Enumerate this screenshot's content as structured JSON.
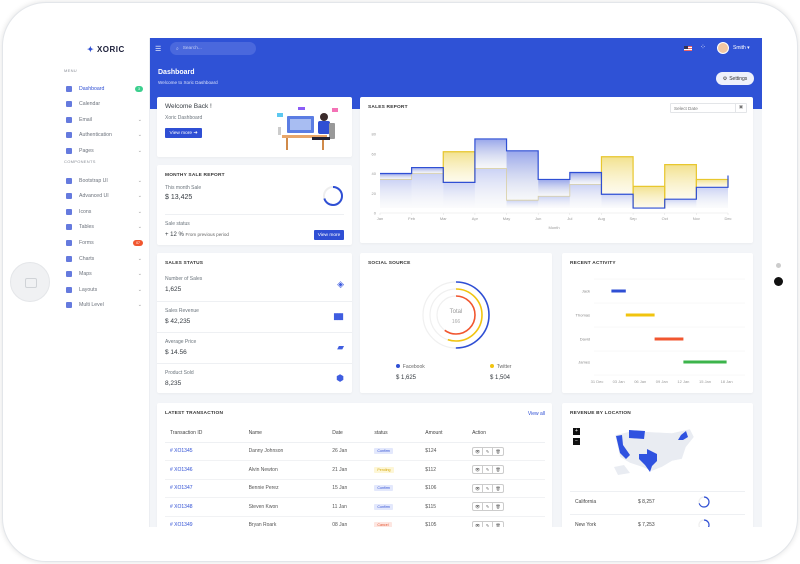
{
  "brand": {
    "name": "XORIC",
    "accent": "#2f4fd4"
  },
  "sidebar": {
    "menu_label": "MENU",
    "components_label": "COMPONENTS",
    "items": [
      {
        "label": "Dashboard",
        "badge": "3",
        "badge_color": "#3ccf8e",
        "active": true,
        "icon": "monitor-icon"
      },
      {
        "label": "Calendar",
        "icon": "calendar-icon"
      },
      {
        "label": "Email",
        "chevron": true,
        "icon": "mail-icon"
      },
      {
        "label": "Authentication",
        "chevron": true,
        "icon": "lock-icon"
      },
      {
        "label": "Pages",
        "chevron": true,
        "icon": "file-icon"
      },
      {
        "label": "Bootstrap UI",
        "chevron": true,
        "icon": "layers-icon"
      },
      {
        "label": "Advanced UI",
        "chevron": true,
        "icon": "box-icon"
      },
      {
        "label": "Icons",
        "chevron": true,
        "icon": "star-icon"
      },
      {
        "label": "Tables",
        "chevron": true,
        "icon": "table-icon"
      },
      {
        "label": "Forms",
        "badge": "07",
        "badge_color": "#f1562f",
        "icon": "form-icon"
      },
      {
        "label": "Charts",
        "chevron": true,
        "icon": "pie-chart-icon"
      },
      {
        "label": "Maps",
        "chevron": true,
        "icon": "map-icon"
      },
      {
        "label": "Layouts",
        "chevron": true,
        "icon": "layout-icon"
      },
      {
        "label": "Multi Level",
        "chevron": true,
        "icon": "share-icon"
      }
    ]
  },
  "topbar": {
    "search_placeholder": "Search...",
    "user": "Smith"
  },
  "page": {
    "title": "Dashboard",
    "subtitle": "Welcome to Xoric Dashboard",
    "settings": "Settings"
  },
  "welcome": {
    "title": "Welcome Back !",
    "subtitle": "Xoric Dashboard",
    "button": "View more"
  },
  "monthly": {
    "title": "MONTHY SALE REPORT",
    "this_month_label": "This month Sale",
    "this_month_value": "$ 13,425",
    "status_label": "Sale status",
    "change": "+ 12 %",
    "change_note": "From previous period",
    "button": "View more",
    "progress": 0.7
  },
  "sales_report": {
    "title": "SALES REPORT",
    "date_placeholder": "Select Date"
  },
  "sales_status": {
    "title": "SALES STATUS",
    "items": [
      {
        "label": "Number of Sales",
        "value": "1,625",
        "icon": "layers-icon"
      },
      {
        "label": "Sales Revenue",
        "value": "$ 42,235",
        "icon": "bar-chart-icon"
      },
      {
        "label": "Average Price",
        "value": "$ 14.56",
        "icon": "ticket-icon"
      },
      {
        "label": "Product Sold",
        "value": "8,235",
        "icon": "cube-icon"
      }
    ]
  },
  "social": {
    "title": "SOCIAL SOURCE",
    "center_label": "Total",
    "center_value": "166",
    "legend": [
      {
        "name": "Facebook",
        "value": "$ 1,625",
        "color": "#2f4fd4"
      },
      {
        "name": "Twitter",
        "value": "$ 1,504",
        "color": "#f1c40f"
      }
    ]
  },
  "recent": {
    "title": "RECENT ACTIVITY"
  },
  "transactions": {
    "title": "LATEST TRANSACTION",
    "view_all": "View all",
    "columns": [
      "Transaction ID",
      "Name",
      "Date",
      "status",
      "Amount",
      "Action"
    ],
    "rows": [
      {
        "id": "# XO1345",
        "name": "Danny Johnson",
        "date": "26 Jan",
        "status": "Confirm",
        "amount": "$124"
      },
      {
        "id": "# XO1346",
        "name": "Alvin Newton",
        "date": "21 Jan",
        "status": "Pending",
        "amount": "$112"
      },
      {
        "id": "# XO1347",
        "name": "Bennie Perez",
        "date": "15 Jan",
        "status": "Confirm",
        "amount": "$106"
      },
      {
        "id": "# XO1348",
        "name": "Steven Kwon",
        "date": "11 Jan",
        "status": "Confirm",
        "amount": "$115"
      },
      {
        "id": "# XO1349",
        "name": "Bryan Roark",
        "date": "08 Jan",
        "status": "Cancel",
        "amount": "$105"
      }
    ]
  },
  "revenue_location": {
    "title": "REVENUE BY LOCATION",
    "zoom_in": "+",
    "zoom_out": "−",
    "rows": [
      {
        "location": "California",
        "value": "$ 8,257",
        "progress": 0.7
      },
      {
        "location": "New York",
        "value": "$ 7,253",
        "progress": 0.6
      }
    ]
  },
  "chart_data": [
    {
      "type": "area",
      "title": "SALES REPORT",
      "xlabel": "Month",
      "ylabel": "",
      "ylim": [
        0,
        80
      ],
      "yticks": [
        0,
        20,
        40,
        60,
        80
      ],
      "categories": [
        "Jan",
        "Feb",
        "Mar",
        "Apr",
        "May",
        "Jun",
        "Jul",
        "Aug",
        "Sep",
        "Oct",
        "Nov",
        "Dec"
      ],
      "step": true,
      "series": [
        {
          "color": "#2f4fd4",
          "values": [
            40,
            46,
            31,
            75,
            63,
            34,
            41,
            19,
            5,
            14,
            26,
            38
          ]
        },
        {
          "color": "#e8c72e",
          "values": [
            34,
            40,
            62,
            45,
            13,
            17,
            29,
            57,
            27,
            49,
            34,
            34
          ]
        }
      ]
    },
    {
      "type": "pie",
      "title": "SOCIAL SOURCE",
      "total": 166,
      "series": [
        {
          "name": "Facebook",
          "color": "#2f4fd4",
          "fraction": 0.5
        },
        {
          "name": "Twitter",
          "color": "#f1c40f",
          "fraction": 0.55
        },
        {
          "color": "#f1562f",
          "fraction": 0.6
        }
      ]
    },
    {
      "type": "bar",
      "subtype": "timeline",
      "title": "RECENT ACTIVITY",
      "xticks": [
        "31 Dec",
        "03 Jan",
        "06 Jan",
        "09 Jan",
        "12 Jan",
        "15 Jan",
        "18 Jan"
      ],
      "tasks": [
        {
          "name": "Jack",
          "start_day": 2,
          "end_day": 4,
          "color": "#2f4fd4"
        },
        {
          "name": "Thomas",
          "start_day": 4,
          "end_day": 8,
          "color": "#f1c40f"
        },
        {
          "name": "David",
          "start_day": 8,
          "end_day": 12,
          "color": "#f1562f"
        },
        {
          "name": "James",
          "start_day": 12,
          "end_day": 18,
          "color": "#3cb44b"
        }
      ]
    }
  ]
}
